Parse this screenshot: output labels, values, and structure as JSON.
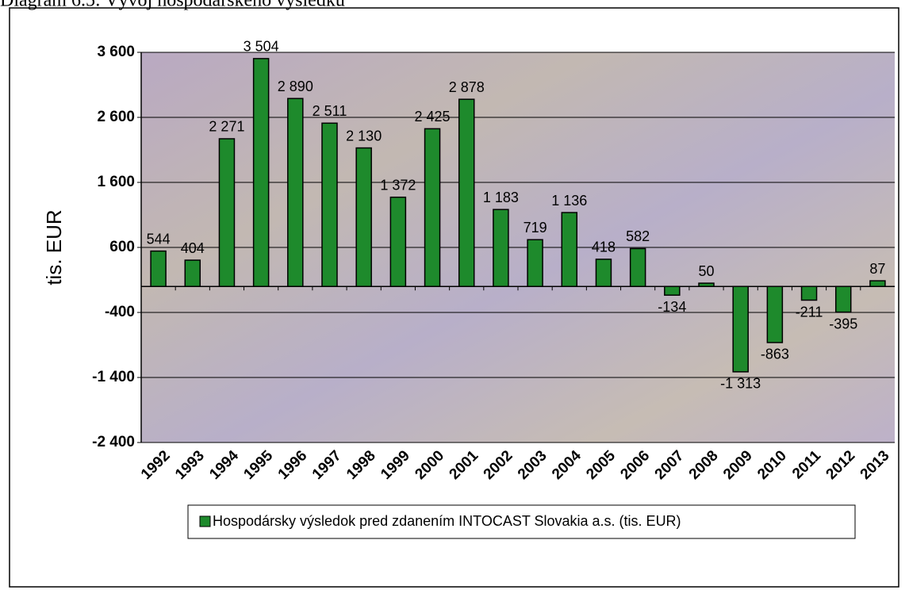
{
  "chart_data": {
    "type": "bar",
    "title": "Diagram 6.5: Vývoj hospodárskeho výsledku",
    "ylabel": "tis. EUR",
    "categories": [
      "1992",
      "1993",
      "1994",
      "1995",
      "1996",
      "1997",
      "1998",
      "1999",
      "2000",
      "2001",
      "2002",
      "2003",
      "2004",
      "2005",
      "2006",
      "2007",
      "2008",
      "2009",
      "2010",
      "2011",
      "2012",
      "2013"
    ],
    "series": [
      {
        "name": "Hospodársky výsledok pred zdanením INTOCAST Slovakia a.s. (tis. EUR)",
        "color": "#1e8a2c",
        "values": [
          544,
          404,
          2271,
          3504,
          2890,
          2511,
          2130,
          1372,
          2425,
          2878,
          1183,
          719,
          1136,
          418,
          582,
          -134,
          50,
          -1313,
          -863,
          -211,
          -395,
          87
        ],
        "value_labels": [
          "544",
          "404",
          "2 271",
          "3 504",
          "2 890",
          "2 511",
          "2 130",
          "1 372",
          "2 425",
          "2 878",
          "1 183",
          "719",
          "1 136",
          "418",
          "582",
          "-134",
          "50",
          "-1 313",
          "-863",
          "-211",
          "-395",
          "87"
        ]
      }
    ],
    "ylim": [
      -2400,
      3600
    ],
    "yticks": [
      {
        "value": -2400,
        "label": "-2 400"
      },
      {
        "value": -1400,
        "label": "-1 400"
      },
      -400,
      600,
      {
        "value": 1600,
        "label": "1 600"
      },
      {
        "value": 2600,
        "label": "2 600"
      },
      {
        "value": 3600,
        "label": "3 600"
      }
    ],
    "grid": true,
    "legend": "bottom"
  }
}
